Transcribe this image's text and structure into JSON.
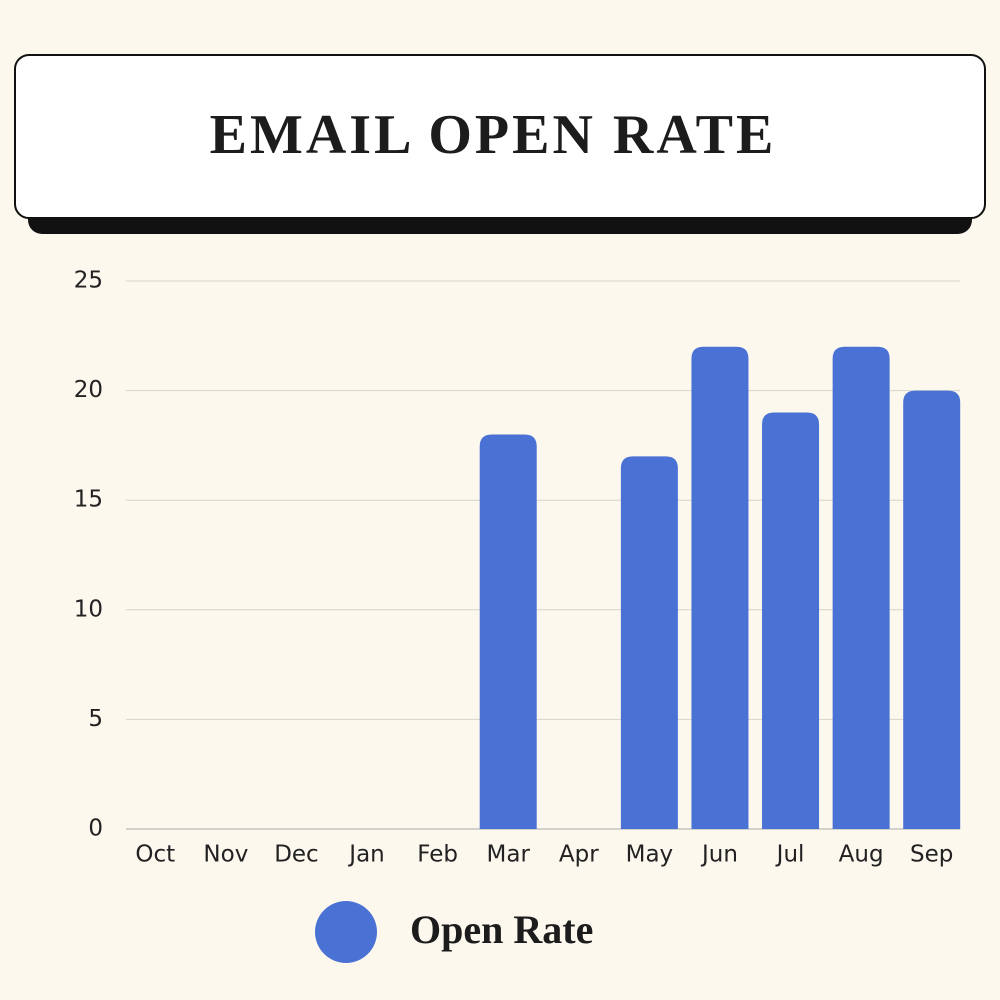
{
  "chart_data": {
    "type": "bar",
    "title": "EMAIL OPEN RATE",
    "categories": [
      "Oct",
      "Nov",
      "Dec",
      "Jan",
      "Feb",
      "Mar",
      "Apr",
      "May",
      "Jun",
      "Jul",
      "Aug",
      "Sep"
    ],
    "series": [
      {
        "name": "Open Rate",
        "color": "#4a71d4",
        "values": [
          0,
          0,
          0,
          0,
          0,
          18,
          0,
          17,
          22,
          19,
          22,
          20
        ]
      }
    ],
    "ylim": [
      0,
      25
    ],
    "yticks": [
      0,
      5,
      10,
      15,
      20,
      25
    ],
    "grid": true
  }
}
